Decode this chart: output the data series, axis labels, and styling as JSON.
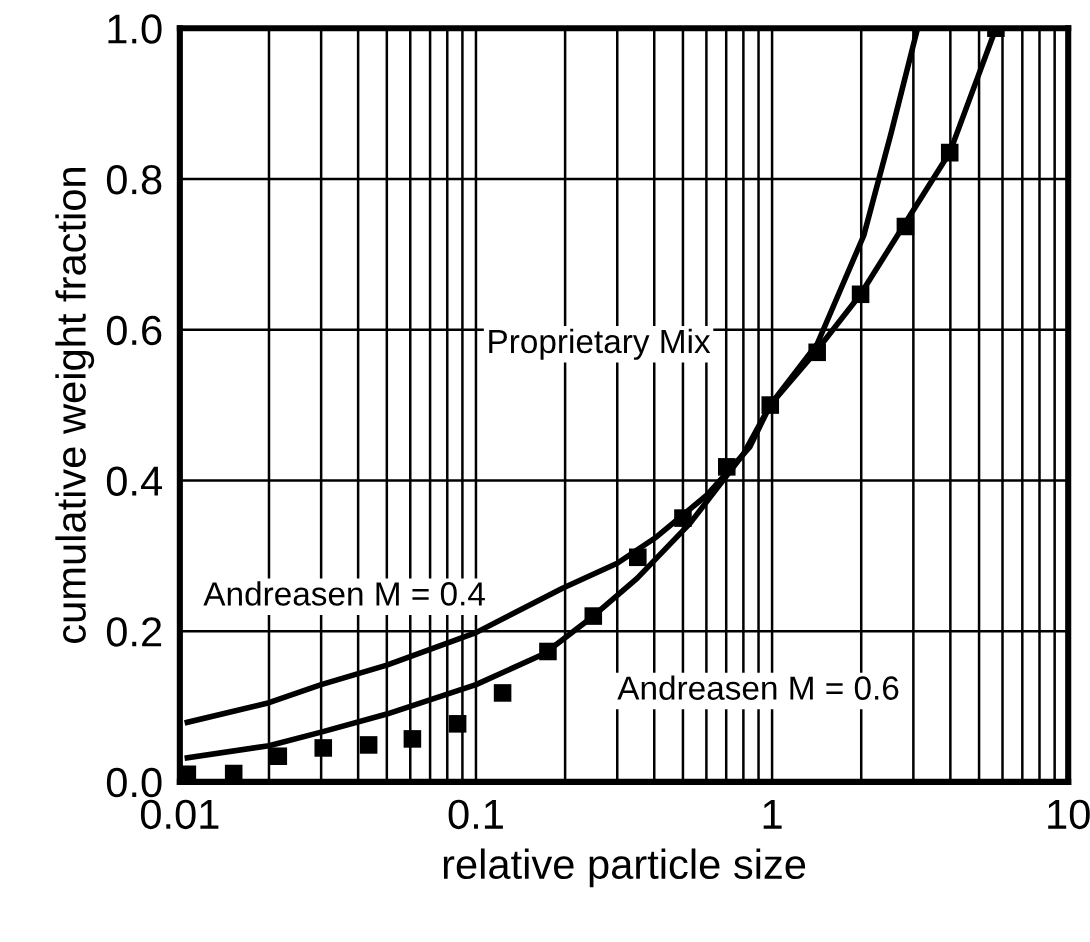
{
  "chart_data": {
    "type": "line",
    "xlabel": "relative particle size",
    "ylabel": "cumulative weight fraction",
    "log": "x",
    "grid": true,
    "legend": false,
    "line_style": "solid",
    "xlim": [
      0.01,
      10
    ],
    "xticks": [
      0.01,
      0.1,
      1,
      10
    ],
    "ylim": [
      0.0,
      1.0
    ],
    "yticks": [
      {
        "value": 0.0,
        "label": "0.0"
      },
      {
        "value": 0.2,
        "label": "0.2"
      },
      {
        "value": 0.4,
        "label": "0.4"
      },
      {
        "value": 0.6,
        "label": "0.6"
      },
      {
        "value": 0.8,
        "label": "0.8"
      },
      {
        "value": 1.0,
        "label": "1.0"
      }
    ],
    "series": [
      {
        "name": "Proprietary Mix",
        "type": "scatter",
        "marker": "square",
        "color": "#000000",
        "x": [
          0.0106,
          0.0152,
          0.0215,
          0.0305,
          0.0434,
          0.061,
          0.0867,
          0.123,
          0.175,
          0.249,
          0.352,
          0.5,
          0.703,
          0.986,
          1.42,
          1.99,
          2.82,
          3.98,
          5.7
        ],
        "values": [
          0.01,
          0.011,
          0.034,
          0.045,
          0.049,
          0.057,
          0.077,
          0.118,
          0.173,
          0.22,
          0.298,
          0.35,
          0.418,
          0.5,
          0.57,
          0.647,
          0.737,
          0.835,
          1.0
        ]
      },
      {
        "name": "Andreasen M = 0.4",
        "color": "#000000",
        "x": [
          0.0106,
          0.02,
          0.03,
          0.05,
          0.1,
          0.196,
          0.3,
          0.407,
          0.6,
          0.84,
          0.986,
          1.42,
          2.04,
          2.52,
          3.1
        ],
        "values": [
          0.079,
          0.105,
          0.129,
          0.155,
          0.198,
          0.257,
          0.29,
          0.325,
          0.38,
          0.444,
          0.5,
          0.581,
          0.725,
          0.86,
          1.0
        ]
      },
      {
        "name": "Andreasen M = 0.6",
        "color": "#000000",
        "x": [
          0.0106,
          0.02,
          0.03,
          0.05,
          0.1,
          0.17,
          0.242,
          0.35,
          0.528,
          0.8,
          0.986,
          1.4,
          1.99,
          2.8,
          3.98,
          5.7
        ],
        "values": [
          0.032,
          0.048,
          0.066,
          0.09,
          0.129,
          0.17,
          0.216,
          0.27,
          0.343,
          0.435,
          0.5,
          0.57,
          0.647,
          0.74,
          0.835,
          1.0
        ]
      }
    ]
  }
}
